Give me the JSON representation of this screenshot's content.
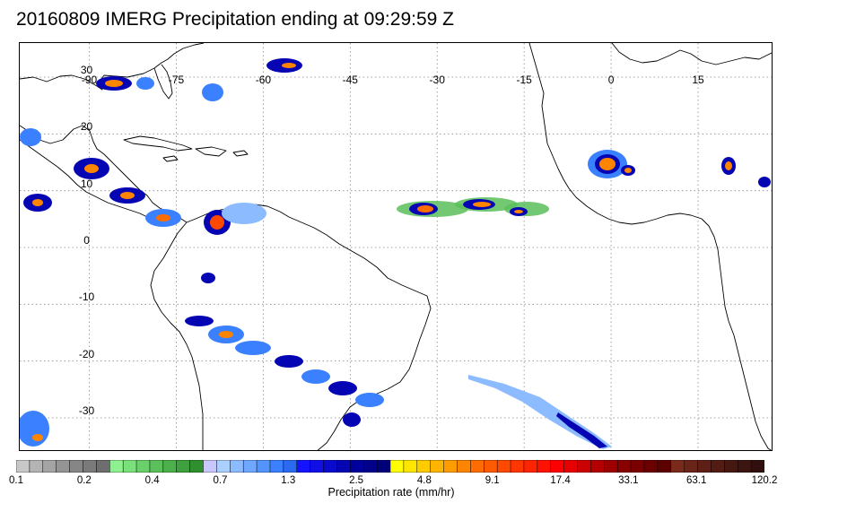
{
  "title": "20160809 IMERG Precipitation ending at 09:29:59 Z",
  "map": {
    "projection": "equirectangular",
    "lon_range": [
      -102,
      28
    ],
    "lat_range": [
      -36,
      36
    ],
    "longitude_labels": [
      "-90",
      "-75",
      "-60",
      "-45",
      "-30",
      "-15",
      "0",
      "15"
    ],
    "latitude_labels": [
      "30",
      "20",
      "10",
      "0",
      "-10",
      "-20",
      "-30"
    ],
    "grid": "dotted"
  },
  "colorbar": {
    "caption": "Precipitation rate (mm/hr)",
    "tick_labels": [
      "0.1",
      "0.2",
      "0.4",
      "0.7",
      "1.3",
      "2.5",
      "4.8",
      "9.1",
      "17.4",
      "33.1",
      "63.1",
      "120.2"
    ],
    "colors": [
      "#c8c8c8",
      "#b4b4b4",
      "#a4a4a4",
      "#949494",
      "#868686",
      "#7a7a7a",
      "#6e6e6e",
      "#8ef08e",
      "#7ae07a",
      "#6ad06a",
      "#5ac05a",
      "#4cb04c",
      "#3ea03e",
      "#309030",
      "#c8c8ff",
      "#aad0ff",
      "#8cbcff",
      "#70a8ff",
      "#5494ff",
      "#3a80ff",
      "#2a6af0",
      "#1414ff",
      "#0f0fe6",
      "#0a0acc",
      "#0505b4",
      "#00009c",
      "#00008a",
      "#000078",
      "#ffff00",
      "#ffe600",
      "#ffcc00",
      "#ffb400",
      "#ff9c00",
      "#ff8400",
      "#ff6c00",
      "#ff5a00",
      "#ff4800",
      "#ff3600",
      "#ff2400",
      "#ff1200",
      "#ff0000",
      "#e60000",
      "#cc0000",
      "#b40000",
      "#9c0000",
      "#880000",
      "#780000",
      "#6a0000",
      "#5c0000",
      "#7a2a1a",
      "#6a2418",
      "#5e2016",
      "#521c14",
      "#461812",
      "#3c1410",
      "#30100c"
    ]
  },
  "colors": {
    "land_outline": "#000000",
    "graticule": "#888888"
  }
}
